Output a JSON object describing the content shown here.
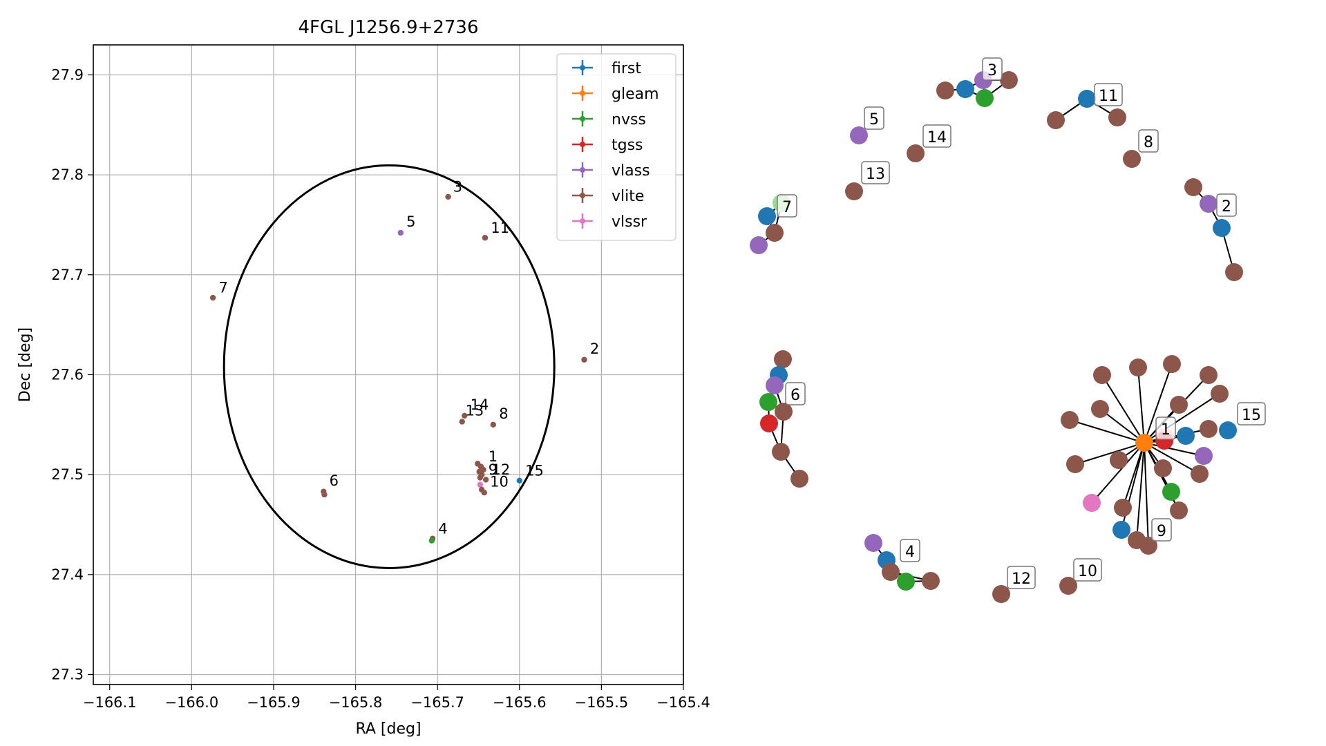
{
  "colors": {
    "first": "#1f77b4",
    "gleam": "#ff7f0e",
    "nvss": "#2ca02c",
    "tgss": "#d62728",
    "vlass": "#9467bd",
    "vlite": "#8c564b",
    "vlssr": "#e377c2",
    "vlite_light": "#98df8a",
    "tgss_light": "#ff9896"
  },
  "chart_data": [
    {
      "type": "scatter",
      "title": "4FGL J1256.9+2736",
      "xlabel": "RA [deg]",
      "ylabel": "Dec [deg]",
      "xlim": [
        -166.12,
        -165.4
      ],
      "ylim": [
        27.29,
        27.93
      ],
      "xticks": [
        -166.1,
        -166.0,
        -165.9,
        -165.8,
        -165.7,
        -165.6,
        -165.5,
        -165.4
      ],
      "xtick_labels": [
        "−166.1",
        "−166.0",
        "−165.9",
        "−165.8",
        "−165.7",
        "−165.6",
        "−165.5",
        "−165.4"
      ],
      "yticks": [
        27.3,
        27.4,
        27.5,
        27.6,
        27.7,
        27.8,
        27.9
      ],
      "ytick_labels": [
        "27.3",
        "27.4",
        "27.5",
        "27.6",
        "27.7",
        "27.8",
        "27.9"
      ],
      "grid": true,
      "legend_position": "top-right",
      "legend": [
        "first",
        "gleam",
        "nvss",
        "tgss",
        "vlass",
        "vlite",
        "vlssr"
      ],
      "circle": {
        "center": [
          -165.759,
          27.608
        ],
        "radius": 0.2015
      },
      "points": [
        {
          "survey": "vlite",
          "x": -165.687,
          "y": 27.778
        },
        {
          "survey": "vlass",
          "x": -165.745,
          "y": 27.742
        },
        {
          "survey": "vlite",
          "x": -165.642,
          "y": 27.737
        },
        {
          "survey": "vlite",
          "x": -165.974,
          "y": 27.677
        },
        {
          "survey": "vlite",
          "x": -165.521,
          "y": 27.615
        },
        {
          "survey": "vlite",
          "x": -165.667,
          "y": 27.559
        },
        {
          "survey": "vlite",
          "x": -165.67,
          "y": 27.553
        },
        {
          "survey": "vlite",
          "x": -165.632,
          "y": 27.55
        },
        {
          "survey": "vlite",
          "x": -165.651,
          "y": 27.511
        },
        {
          "survey": "vlite",
          "x": -165.647,
          "y": 27.508
        },
        {
          "survey": "vlite",
          "x": -165.644,
          "y": 27.505
        },
        {
          "survey": "vlite",
          "x": -165.649,
          "y": 27.503
        },
        {
          "survey": "vlite",
          "x": -165.646,
          "y": 27.5
        },
        {
          "survey": "vlite",
          "x": -165.648,
          "y": 27.497
        },
        {
          "survey": "vlite",
          "x": -165.641,
          "y": 27.495
        },
        {
          "survey": "first",
          "x": -165.6,
          "y": 27.494
        },
        {
          "survey": "vlssr",
          "x": -165.648,
          "y": 27.49
        },
        {
          "survey": "vlite",
          "x": -165.646,
          "y": 27.485
        },
        {
          "survey": "vlite",
          "x": -165.643,
          "y": 27.482
        },
        {
          "survey": "vlite",
          "x": -165.839,
          "y": 27.483
        },
        {
          "survey": "vlite",
          "x": -165.838,
          "y": 27.48
        },
        {
          "survey": "vlite",
          "x": -165.706,
          "y": 27.436
        },
        {
          "survey": "nvss",
          "x": -165.707,
          "y": 27.434
        }
      ],
      "labels": [
        {
          "text": "3",
          "x": -165.686,
          "y": 27.779
        },
        {
          "text": "5",
          "x": -165.743,
          "y": 27.744
        },
        {
          "text": "11",
          "x": -165.64,
          "y": 27.738
        },
        {
          "text": "7",
          "x": -165.972,
          "y": 27.678
        },
        {
          "text": "2",
          "x": -165.519,
          "y": 27.617
        },
        {
          "text": "14",
          "x": -165.665,
          "y": 27.561
        },
        {
          "text": "13",
          "x": -165.671,
          "y": 27.555
        },
        {
          "text": "8",
          "x": -165.63,
          "y": 27.552
        },
        {
          "text": "1",
          "x": -165.643,
          "y": 27.509
        },
        {
          "text": "9",
          "x": -165.643,
          "y": 27.496
        },
        {
          "text": "12",
          "x": -165.639,
          "y": 27.496
        },
        {
          "text": "10",
          "x": -165.641,
          "y": 27.484
        },
        {
          "text": "15",
          "x": -165.598,
          "y": 27.495
        },
        {
          "text": "6",
          "x": -165.837,
          "y": 27.485
        },
        {
          "text": "4",
          "x": -165.704,
          "y": 27.437
        }
      ]
    },
    {
      "type": "network",
      "nodes": [
        {
          "id": "c3a",
          "survey": "vlite"
        },
        {
          "id": "c3b",
          "survey": "first"
        },
        {
          "id": "c3c",
          "survey": "vlass"
        },
        {
          "id": "c3d",
          "survey": "nvss"
        },
        {
          "id": "c3e",
          "survey": "vlite"
        },
        {
          "id": "c11a",
          "survey": "vlite"
        },
        {
          "id": "c11b",
          "survey": "first"
        },
        {
          "id": "c11c",
          "survey": "vlite"
        },
        {
          "id": "c5",
          "survey": "vlass"
        },
        {
          "id": "c14",
          "survey": "vlite"
        },
        {
          "id": "c8",
          "survey": "vlite"
        },
        {
          "id": "c13",
          "survey": "vlite"
        },
        {
          "id": "c7a",
          "survey": "first"
        },
        {
          "id": "c7b",
          "survey": "vlite_light"
        },
        {
          "id": "c7c",
          "survey": "vlite"
        },
        {
          "id": "c7d",
          "survey": "vlass"
        },
        {
          "id": "c2a",
          "survey": "vlite"
        },
        {
          "id": "c2b",
          "survey": "vlass"
        },
        {
          "id": "c2c",
          "survey": "first"
        },
        {
          "id": "c2d",
          "survey": "vlite"
        },
        {
          "id": "c6a",
          "survey": "vlite"
        },
        {
          "id": "c6b",
          "survey": "first"
        },
        {
          "id": "c6c",
          "survey": "vlass"
        },
        {
          "id": "c6d",
          "survey": "nvss"
        },
        {
          "id": "c6e",
          "survey": "vlite"
        },
        {
          "id": "c6f",
          "survey": "tgss"
        },
        {
          "id": "c6g",
          "survey": "vlite"
        },
        {
          "id": "c6h",
          "survey": "vlite"
        },
        {
          "id": "hub",
          "survey": "gleam"
        },
        {
          "id": "h1",
          "survey": "vlite"
        },
        {
          "id": "h2",
          "survey": "vlite"
        },
        {
          "id": "h3",
          "survey": "vlite"
        },
        {
          "id": "h4",
          "survey": "vlite"
        },
        {
          "id": "h5",
          "survey": "vlite"
        },
        {
          "id": "h6",
          "survey": "vlite"
        },
        {
          "id": "h7",
          "survey": "vlite"
        },
        {
          "id": "h8",
          "survey": "vlite"
        },
        {
          "id": "h9",
          "survey": "tgss_light"
        },
        {
          "id": "h10",
          "survey": "tgss"
        },
        {
          "id": "h11",
          "survey": "first"
        },
        {
          "id": "h12",
          "survey": "vlite"
        },
        {
          "id": "h13",
          "survey": "vlite"
        },
        {
          "id": "h14",
          "survey": "vlite"
        },
        {
          "id": "h15",
          "survey": "vlite"
        },
        {
          "id": "h16",
          "survey": "vlass"
        },
        {
          "id": "h17",
          "survey": "vlite"
        },
        {
          "id": "h18",
          "survey": "nvss"
        },
        {
          "id": "h19",
          "survey": "vlssr"
        },
        {
          "id": "h20",
          "survey": "vlite"
        },
        {
          "id": "h21",
          "survey": "vlite"
        },
        {
          "id": "h22",
          "survey": "first"
        },
        {
          "id": "h23",
          "survey": "vlite"
        },
        {
          "id": "h24",
          "survey": "vlite"
        },
        {
          "id": "c15",
          "survey": "first"
        },
        {
          "id": "c4a",
          "survey": "vlass"
        },
        {
          "id": "c4b",
          "survey": "first"
        },
        {
          "id": "c4c",
          "survey": "vlite"
        },
        {
          "id": "c4d",
          "survey": "nvss"
        },
        {
          "id": "c4e",
          "survey": "vlite"
        },
        {
          "id": "c12",
          "survey": "vlite"
        },
        {
          "id": "c10",
          "survey": "vlite"
        }
      ],
      "edges": [
        [
          "c3a",
          "c3b"
        ],
        [
          "c3b",
          "c3c"
        ],
        [
          "c3b",
          "c3d"
        ],
        [
          "c3c",
          "c3e"
        ],
        [
          "c3d",
          "c3e"
        ],
        [
          "c3c",
          "c3d"
        ],
        [
          "c11a",
          "c11b"
        ],
        [
          "c11b",
          "c11c"
        ],
        [
          "c7a",
          "c7b"
        ],
        [
          "c7a",
          "c7c"
        ],
        [
          "c7c",
          "c7d"
        ],
        [
          "c7b",
          "c7c"
        ],
        [
          "c2a",
          "c2b"
        ],
        [
          "c2b",
          "c2c"
        ],
        [
          "c2c",
          "c2d"
        ],
        [
          "c6a",
          "c6b"
        ],
        [
          "c6b",
          "c6c"
        ],
        [
          "c6c",
          "c6d"
        ],
        [
          "c6d",
          "c6e"
        ],
        [
          "c6c",
          "c6e"
        ],
        [
          "c6d",
          "c6f"
        ],
        [
          "c6f",
          "c6g"
        ],
        [
          "c6e",
          "c6g"
        ],
        [
          "c6g",
          "c6h"
        ],
        [
          "hub",
          "h1"
        ],
        [
          "hub",
          "h2"
        ],
        [
          "hub",
          "h3"
        ],
        [
          "hub",
          "h4"
        ],
        [
          "hub",
          "h5"
        ],
        [
          "hub",
          "h6"
        ],
        [
          "hub",
          "h7"
        ],
        [
          "hub",
          "h8"
        ],
        [
          "hub",
          "h9"
        ],
        [
          "hub",
          "h10"
        ],
        [
          "hub",
          "h11"
        ],
        [
          "hub",
          "h12"
        ],
        [
          "hub",
          "h13"
        ],
        [
          "hub",
          "h14"
        ],
        [
          "hub",
          "h15"
        ],
        [
          "hub",
          "h16"
        ],
        [
          "hub",
          "h17"
        ],
        [
          "hub",
          "h18"
        ],
        [
          "hub",
          "h19"
        ],
        [
          "hub",
          "h20"
        ],
        [
          "hub",
          "h21"
        ],
        [
          "hub",
          "h22"
        ],
        [
          "hub",
          "h23"
        ],
        [
          "hub",
          "h24"
        ],
        [
          "c4a",
          "c4b"
        ],
        [
          "c4b",
          "c4c"
        ],
        [
          "c4b",
          "c4d"
        ],
        [
          "c4c",
          "c4e"
        ],
        [
          "c4d",
          "c4e"
        ]
      ],
      "labels": [
        "3",
        "11",
        "5",
        "14",
        "8",
        "13",
        "7",
        "2",
        "6",
        "1",
        "15",
        "9",
        "4",
        "12",
        "10"
      ]
    }
  ]
}
